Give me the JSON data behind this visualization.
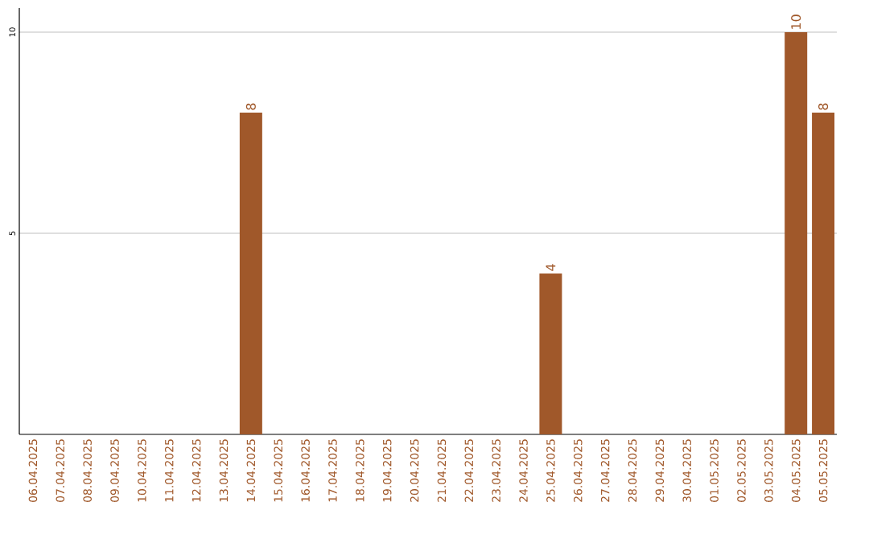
{
  "chart_data": {
    "type": "bar",
    "categories": [
      "06.04.2025",
      "07.04.2025",
      "08.04.2025",
      "09.04.2025",
      "10.04.2025",
      "11.04.2025",
      "12.04.2025",
      "13.04.2025",
      "14.04.2025",
      "15.04.2025",
      "16.04.2025",
      "17.04.2025",
      "18.04.2025",
      "19.04.2025",
      "20.04.2025",
      "21.04.2025",
      "22.04.2025",
      "23.04.2025",
      "24.04.2025",
      "25.04.2025",
      "26.04.2025",
      "27.04.2025",
      "28.04.2025",
      "29.04.2025",
      "30.04.2025",
      "01.05.2025",
      "02.05.2025",
      "03.05.2025",
      "04.05.2025",
      "05.05.2025"
    ],
    "values": [
      0,
      0,
      0,
      0,
      0,
      0,
      0,
      0,
      8,
      0,
      0,
      0,
      0,
      0,
      0,
      0,
      0,
      0,
      0,
      4,
      0,
      0,
      0,
      0,
      0,
      0,
      0,
      0,
      10,
      8
    ],
    "value_labels": [
      null,
      null,
      null,
      null,
      null,
      null,
      null,
      null,
      "8",
      null,
      null,
      null,
      null,
      null,
      null,
      null,
      null,
      null,
      null,
      "4",
      null,
      null,
      null,
      null,
      null,
      null,
      null,
      null,
      "10",
      "8"
    ],
    "color": "#a0582a",
    "ylim": [
      0,
      10.6
    ],
    "yticks": [
      5,
      10
    ],
    "grid": "y"
  }
}
